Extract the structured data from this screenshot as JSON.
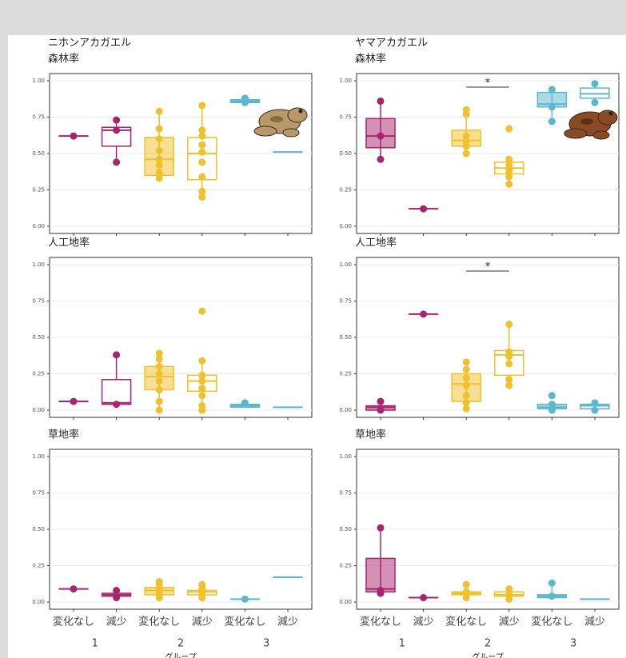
{
  "chart_data": [
    {
      "type": "box",
      "supertitle": "ニホンアカガエル",
      "title": "森林率",
      "group_colors": [
        "#a8246e",
        "#efc12a",
        "#5ab7cc"
      ],
      "ylim": [
        0,
        1
      ],
      "yticks": [
        {
          "value": 0,
          "label": "0.00"
        },
        {
          "value": 0.25,
          "label": "0.25"
        },
        {
          "value": 0.5,
          "label": "0.50"
        },
        {
          "value": 0.75,
          "label": "0.75"
        },
        {
          "value": 1,
          "label": "1.00"
        }
      ],
      "boxes": [
        {
          "low": 0.62,
          "q1": 0.62,
          "median": 0.62,
          "q3": 0.62,
          "high": 0.62,
          "points": [
            0.62
          ]
        },
        {
          "low": 0.44,
          "q1": 0.55,
          "median": 0.66,
          "q3": 0.68,
          "high": 0.73,
          "points": [
            0.44,
            0.66,
            0.73
          ]
        },
        {
          "low": 0.33,
          "q1": 0.35,
          "median": 0.46,
          "q3": 0.61,
          "high": 0.79,
          "points": [
            0.33,
            0.37,
            0.42,
            0.46,
            0.52,
            0.6,
            0.67,
            0.79
          ]
        },
        {
          "low": 0.2,
          "q1": 0.32,
          "median": 0.5,
          "q3": 0.61,
          "high": 0.83,
          "points": [
            0.2,
            0.24,
            0.34,
            0.44,
            0.51,
            0.56,
            0.62,
            0.66,
            0.83
          ]
        },
        {
          "low": 0.85,
          "q1": 0.85,
          "median": 0.86,
          "q3": 0.87,
          "high": 0.88,
          "points": [
            0.85,
            0.88
          ]
        },
        {
          "low": 0.51,
          "q1": 0.51,
          "median": 0.51,
          "q3": 0.51,
          "high": 0.51,
          "points": []
        }
      ]
    },
    {
      "type": "box",
      "supertitle": "ヤマアカガエル",
      "title": "森林率",
      "annotation": "*",
      "group_colors": [
        "#a8246e",
        "#efc12a",
        "#5ab7cc"
      ],
      "ylim": [
        0,
        1
      ],
      "yticks": [
        {
          "value": 0,
          "label": "0.00"
        },
        {
          "value": 0.25,
          "label": "0.25"
        },
        {
          "value": 0.5,
          "label": "0.50"
        },
        {
          "value": 0.75,
          "label": "0.75"
        },
        {
          "value": 1,
          "label": "1.00"
        }
      ],
      "boxes": [
        {
          "low": 0.46,
          "q1": 0.54,
          "median": 0.62,
          "q3": 0.74,
          "high": 0.86,
          "points": [
            0.46,
            0.62,
            0.86
          ]
        },
        {
          "low": 0.12,
          "q1": 0.12,
          "median": 0.12,
          "q3": 0.12,
          "high": 0.12,
          "points": [
            0.12
          ]
        },
        {
          "low": 0.5,
          "q1": 0.55,
          "median": 0.59,
          "q3": 0.66,
          "high": 0.8,
          "points": [
            0.5,
            0.55,
            0.58,
            0.62,
            0.77,
            0.8
          ]
        },
        {
          "low": 0.29,
          "q1": 0.36,
          "median": 0.4,
          "q3": 0.44,
          "high": 0.46,
          "points": [
            0.29,
            0.34,
            0.38,
            0.42,
            0.46,
            0.67
          ]
        },
        {
          "low": 0.72,
          "q1": 0.82,
          "median": 0.84,
          "q3": 0.92,
          "high": 0.94,
          "points": [
            0.72,
            0.82,
            0.94
          ]
        },
        {
          "low": 0.85,
          "q1": 0.88,
          "median": 0.91,
          "q3": 0.95,
          "high": 0.98,
          "points": [
            0.85,
            0.98
          ]
        }
      ]
    },
    {
      "type": "box",
      "title": "人工地率",
      "group_colors": [
        "#a8246e",
        "#efc12a",
        "#5ab7cc"
      ],
      "ylim": [
        0,
        1
      ],
      "yticks": [
        {
          "value": 0,
          "label": "0.00"
        },
        {
          "value": 0.25,
          "label": "0.25"
        },
        {
          "value": 0.5,
          "label": "0.50"
        },
        {
          "value": 0.75,
          "label": "0.75"
        },
        {
          "value": 1,
          "label": "1.00"
        }
      ],
      "boxes": [
        {
          "low": 0.06,
          "q1": 0.06,
          "median": 0.06,
          "q3": 0.06,
          "high": 0.06,
          "points": [
            0.06
          ]
        },
        {
          "low": 0.04,
          "q1": 0.04,
          "median": 0.05,
          "q3": 0.21,
          "high": 0.38,
          "points": [
            0.04,
            0.38
          ]
        },
        {
          "low": 0,
          "q1": 0.14,
          "median": 0.23,
          "q3": 0.3,
          "high": 0.39,
          "points": [
            0,
            0.06,
            0.14,
            0.2,
            0.25,
            0.3,
            0.35,
            0.39
          ]
        },
        {
          "low": 0,
          "q1": 0.13,
          "median": 0.2,
          "q3": 0.24,
          "high": 0.34,
          "points": [
            0,
            0.03,
            0.1,
            0.15,
            0.2,
            0.24,
            0.34,
            0.68
          ]
        },
        {
          "low": 0.02,
          "q1": 0.02,
          "median": 0.03,
          "q3": 0.04,
          "high": 0.05,
          "points": [
            0.05
          ]
        },
        {
          "low": 0.02,
          "q1": 0.02,
          "median": 0.02,
          "q3": 0.02,
          "high": 0.02,
          "points": []
        }
      ]
    },
    {
      "type": "box",
      "title": "人工地率",
      "annotation": "*",
      "group_colors": [
        "#a8246e",
        "#efc12a",
        "#5ab7cc"
      ],
      "ylim": [
        0,
        1
      ],
      "yticks": [
        {
          "value": 0,
          "label": "0.00"
        },
        {
          "value": 0.25,
          "label": "0.25"
        },
        {
          "value": 0.5,
          "label": "0.50"
        },
        {
          "value": 0.75,
          "label": "0.75"
        },
        {
          "value": 1,
          "label": "1.00"
        }
      ],
      "boxes": [
        {
          "low": 0,
          "q1": 0,
          "median": 0.02,
          "q3": 0.03,
          "high": 0.06,
          "points": [
            0,
            0.06
          ]
        },
        {
          "low": 0.66,
          "q1": 0.66,
          "median": 0.66,
          "q3": 0.66,
          "high": 0.66,
          "points": [
            0.66
          ]
        },
        {
          "low": 0.01,
          "q1": 0.06,
          "median": 0.18,
          "q3": 0.25,
          "high": 0.33,
          "points": [
            0.01,
            0.05,
            0.1,
            0.17,
            0.22,
            0.28,
            0.33
          ]
        },
        {
          "low": 0.17,
          "q1": 0.24,
          "median": 0.38,
          "q3": 0.41,
          "high": 0.59,
          "points": [
            0.17,
            0.21,
            0.32,
            0.37,
            0.4,
            0.59
          ]
        },
        {
          "low": 0,
          "q1": 0.01,
          "median": 0.02,
          "q3": 0.04,
          "high": 0.06,
          "points": [
            0,
            0.04,
            0.1
          ]
        },
        {
          "low": 0,
          "q1": 0.01,
          "median": 0.03,
          "q3": 0.04,
          "high": 0.05,
          "points": [
            0,
            0.05
          ]
        }
      ]
    },
    {
      "type": "box",
      "title": "草地率",
      "categories": [
        "変化なし",
        "減少",
        "変化なし",
        "減少",
        "変化なし",
        "減少"
      ],
      "groups": [
        "1",
        "2",
        "3"
      ],
      "xlabel": "グループ",
      "group_colors": [
        "#a8246e",
        "#efc12a",
        "#5ab7cc"
      ],
      "ylim": [
        0,
        1
      ],
      "yticks": [
        {
          "value": 0,
          "label": "0.00"
        },
        {
          "value": 0.25,
          "label": "0.25"
        },
        {
          "value": 0.5,
          "label": "0.50"
        },
        {
          "value": 0.75,
          "label": "0.75"
        },
        {
          "value": 1,
          "label": "1.00"
        }
      ],
      "boxes": [
        {
          "low": 0.09,
          "q1": 0.09,
          "median": 0.09,
          "q3": 0.09,
          "high": 0.09,
          "points": [
            0.09
          ]
        },
        {
          "low": 0.03,
          "q1": 0.04,
          "median": 0.05,
          "q3": 0.06,
          "high": 0.08,
          "points": [
            0.03,
            0.08
          ]
        },
        {
          "low": 0.03,
          "q1": 0.05,
          "median": 0.08,
          "q3": 0.1,
          "high": 0.14,
          "points": [
            0.03,
            0.06,
            0.09,
            0.12,
            0.14
          ]
        },
        {
          "low": 0.03,
          "q1": 0.05,
          "median": 0.07,
          "q3": 0.08,
          "high": 0.12,
          "points": [
            0.03,
            0.06,
            0.09,
            0.12
          ]
        },
        {
          "low": 0.02,
          "q1": 0.02,
          "median": 0.02,
          "q3": 0.02,
          "high": 0.02,
          "points": [
            0.02
          ]
        },
        {
          "low": 0.17,
          "q1": 0.17,
          "median": 0.17,
          "q3": 0.17,
          "high": 0.17,
          "points": []
        }
      ]
    },
    {
      "type": "box",
      "title": "草地率",
      "categories": [
        "変化なし",
        "減少",
        "変化なし",
        "減少",
        "変化なし",
        "減少"
      ],
      "groups": [
        "1",
        "2",
        "3"
      ],
      "xlabel": "グループ",
      "group_colors": [
        "#a8246e",
        "#efc12a",
        "#5ab7cc"
      ],
      "ylim": [
        0,
        1
      ],
      "yticks": [
        {
          "value": 0,
          "label": "0.00"
        },
        {
          "value": 0.25,
          "label": "0.25"
        },
        {
          "value": 0.5,
          "label": "0.50"
        },
        {
          "value": 0.75,
          "label": "0.75"
        },
        {
          "value": 1,
          "label": "1.00"
        }
      ],
      "boxes": [
        {
          "low": 0.06,
          "q1": 0.07,
          "median": 0.09,
          "q3": 0.3,
          "high": 0.51,
          "points": [
            0.06,
            0.08,
            0.51
          ]
        },
        {
          "low": 0.03,
          "q1": 0.03,
          "median": 0.03,
          "q3": 0.03,
          "high": 0.03,
          "points": [
            0.03
          ]
        },
        {
          "low": 0.03,
          "q1": 0.05,
          "median": 0.06,
          "q3": 0.07,
          "high": 0.12,
          "points": [
            0.03,
            0.07,
            0.12
          ]
        },
        {
          "low": 0.02,
          "q1": 0.04,
          "median": 0.05,
          "q3": 0.07,
          "high": 0.09,
          "points": [
            0.02,
            0.05,
            0.09
          ]
        },
        {
          "low": 0.03,
          "q1": 0.03,
          "median": 0.04,
          "q3": 0.05,
          "high": 0.13,
          "points": [
            0.04,
            0.13
          ]
        },
        {
          "low": 0.02,
          "q1": 0.02,
          "median": 0.02,
          "q3": 0.02,
          "high": 0.02,
          "points": []
        }
      ]
    }
  ]
}
